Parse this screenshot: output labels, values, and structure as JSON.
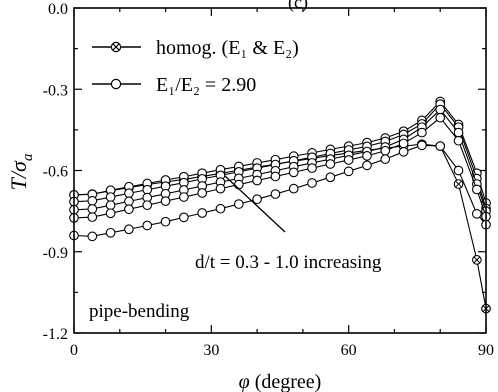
{
  "chart_data": {
    "type": "line",
    "panel_label": "(c)",
    "xlabel_symbol": "φ",
    "xlabel_unit": "(degree)",
    "ylabel_main": "T/σ",
    "ylabel_sub": "a",
    "xlim": [
      0,
      90
    ],
    "ylim": [
      -1.2,
      0.0
    ],
    "xticks": [
      0,
      30,
      60,
      90
    ],
    "xtick_labels": [
      "0",
      "30",
      "60",
      "90"
    ],
    "yticks": [
      0.0,
      -0.3,
      -0.6,
      -0.9,
      -1.2
    ],
    "ytick_labels": [
      "0.0",
      "-0.3",
      "-0.6",
      "-0.9",
      "-1.2"
    ],
    "legend": {
      "placement": "top-left",
      "entries": [
        {
          "label": "homog. (E₁ & E₂)",
          "marker": "crossed-circle"
        },
        {
          "label": "E₁/E₂ = 2.90",
          "marker": "open-circle"
        }
      ]
    },
    "annotations": {
      "arrow_text": "d/t = 0.3 - 1.0 increasing",
      "case_label": "pipe-bending"
    },
    "x": [
      0,
      4,
      8,
      12,
      16,
      20,
      24,
      28,
      32,
      36,
      40,
      44,
      48,
      52,
      56,
      60,
      64,
      68,
      72,
      76,
      80,
      84,
      88,
      90
    ],
    "series": [
      {
        "marker": "crossed-circle",
        "values": [
          -0.69,
          -0.687,
          -0.675,
          -0.663,
          -0.652,
          -0.642,
          -0.633,
          -0.622,
          -0.611,
          -0.599,
          -0.588,
          -0.576,
          -0.566,
          -0.555,
          -0.545,
          -0.535,
          -0.526,
          -0.517,
          -0.51,
          -0.503,
          -0.51,
          -0.65,
          -0.93,
          -1.11
        ]
      },
      {
        "marker": "open-circle",
        "values": [
          -0.69,
          -0.688,
          -0.673,
          -0.66,
          -0.648,
          -0.635,
          -0.623,
          -0.61,
          -0.597,
          -0.585,
          -0.572,
          -0.56,
          -0.547,
          -0.535,
          -0.522,
          -0.51,
          -0.497,
          -0.48,
          -0.455,
          -0.415,
          -0.345,
          -0.43,
          -0.61,
          -0.72
        ]
      },
      {
        "marker": "open-circle",
        "values": [
          -0.715,
          -0.712,
          -0.698,
          -0.684,
          -0.671,
          -0.658,
          -0.645,
          -0.631,
          -0.618,
          -0.605,
          -0.591,
          -0.578,
          -0.564,
          -0.551,
          -0.537,
          -0.524,
          -0.511,
          -0.493,
          -0.467,
          -0.428,
          -0.355,
          -0.44,
          -0.63,
          -0.74
        ]
      },
      {
        "marker": "open-circle",
        "values": [
          -0.745,
          -0.742,
          -0.728,
          -0.714,
          -0.7,
          -0.686,
          -0.672,
          -0.657,
          -0.643,
          -0.629,
          -0.615,
          -0.601,
          -0.586,
          -0.572,
          -0.558,
          -0.544,
          -0.53,
          -0.513,
          -0.485,
          -0.44,
          -0.375,
          -0.46,
          -0.65,
          -0.75
        ]
      },
      {
        "marker": "open-circle",
        "values": [
          -0.775,
          -0.772,
          -0.758,
          -0.743,
          -0.728,
          -0.713,
          -0.698,
          -0.683,
          -0.667,
          -0.652,
          -0.637,
          -0.622,
          -0.607,
          -0.591,
          -0.576,
          -0.561,
          -0.546,
          -0.527,
          -0.5,
          -0.46,
          -0.405,
          -0.49,
          -0.67,
          -0.77
        ]
      },
      {
        "marker": "open-circle",
        "values": [
          -0.84,
          -0.843,
          -0.83,
          -0.817,
          -0.803,
          -0.789,
          -0.773,
          -0.757,
          -0.741,
          -0.724,
          -0.706,
          -0.687,
          -0.667,
          -0.646,
          -0.625,
          -0.603,
          -0.581,
          -0.558,
          -0.531,
          -0.507,
          -0.51,
          -0.6,
          -0.76,
          -0.8
        ]
      }
    ]
  }
}
